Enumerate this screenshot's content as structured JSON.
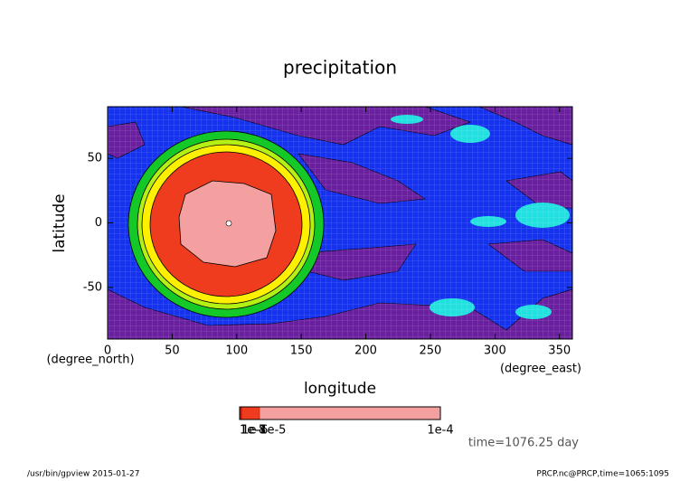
{
  "chart_data": {
    "type": "contour",
    "title": "precipitation",
    "xlabel": "longitude",
    "ylabel": "latitude",
    "x_unit_label": "(degree_east)",
    "y_unit_label": "(degree_north)",
    "xlim": [
      0,
      360
    ],
    "ylim": [
      -90,
      90
    ],
    "xticks": [
      0,
      50,
      100,
      150,
      200,
      250,
      300,
      350
    ],
    "yticks": [
      -50,
      0,
      50
    ],
    "colorbar": {
      "lim": [
        0,
        0.0001
      ],
      "ticks": [
        {
          "value": 1e-08,
          "label": "1e-8"
        },
        {
          "value": 1e-07,
          "label": "1e-7"
        },
        {
          "value": 1e-06,
          "label": "1e-6"
        },
        {
          "value": 1e-05,
          "label": "1e-5"
        },
        {
          "value": 0.0001,
          "label": "1e-4"
        }
      ],
      "colors": [
        "#000000",
        "#8b0000",
        "#c81e0a",
        "#f03c1e",
        "#f4a0a0"
      ]
    },
    "annotation": "time=1076.25 day",
    "footer_left": "/usr/bin/gpview  2015-01-27",
    "footer_right": "PRCP.nc@PRCP,time=1065:1095"
  }
}
